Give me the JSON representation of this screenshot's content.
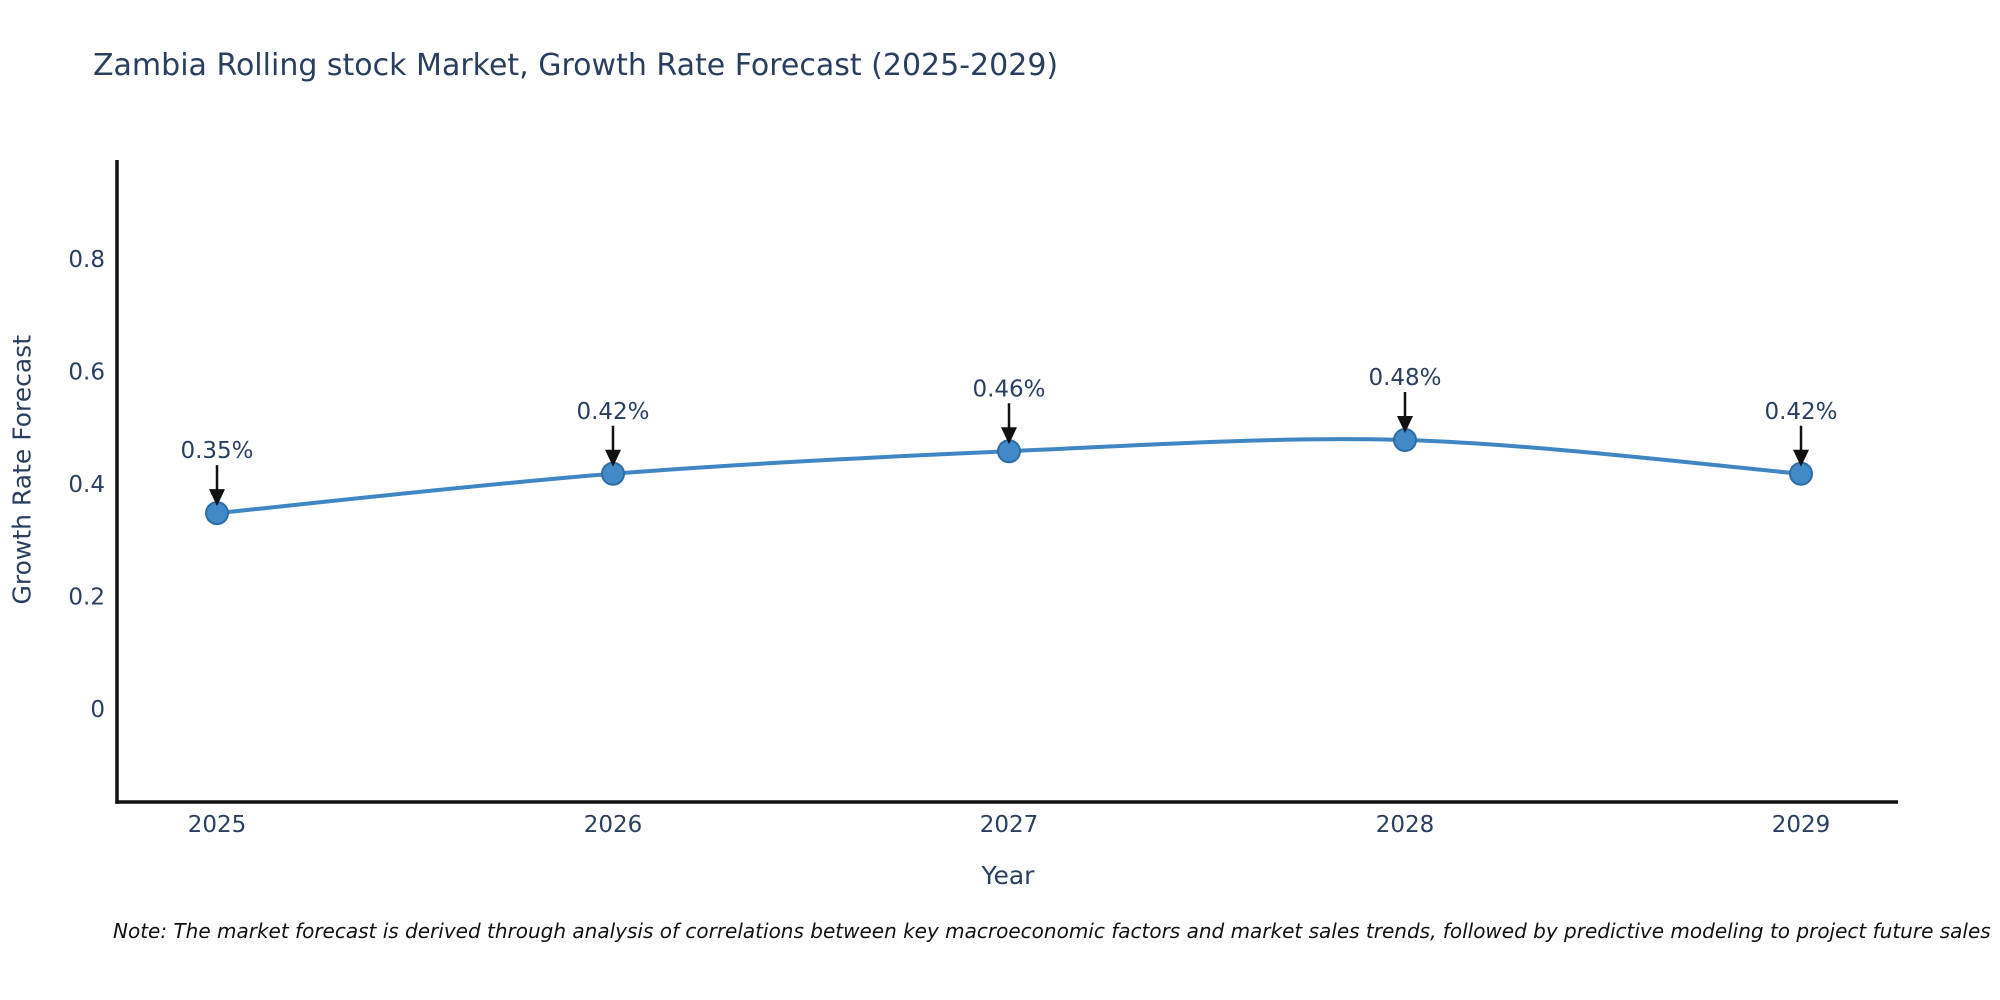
{
  "title": "Zambia Rolling stock Market, Growth Rate Forecast (2025-2029)",
  "note": "Note: The market forecast is derived through analysis of correlations between key macroeconomic factors and market sales trends, followed by predictive modeling to project future sales",
  "chart_data": {
    "type": "line",
    "title": "Zambia Rolling stock Market, Growth Rate Forecast (2025-2029)",
    "xlabel": "Year",
    "ylabel": "Growth Rate Forecast",
    "categories": [
      "2025",
      "2026",
      "2027",
      "2028",
      "2029"
    ],
    "series": [
      {
        "name": "Growth Rate Forecast",
        "values": [
          0.35,
          0.42,
          0.46,
          0.48,
          0.42
        ]
      }
    ],
    "point_labels": [
      "0.35%",
      "0.42%",
      "0.46%",
      "0.48%",
      "0.42%"
    ],
    "yticks": [
      0,
      0.2,
      0.4,
      0.6,
      0.8
    ],
    "ytick_labels": [
      "0",
      "0.2",
      "0.4",
      "0.6",
      "0.8"
    ],
    "ylim": [
      -0.16,
      0.98
    ],
    "line_shape": "spline",
    "grid": false,
    "legend_position": "none",
    "colors": {
      "line": "#3f86c3",
      "marker_fill": "#4189c7",
      "marker_stroke": "#2e6da4",
      "axis": "#111111",
      "text": "#2a3f5f",
      "arrow": "#111111"
    }
  }
}
